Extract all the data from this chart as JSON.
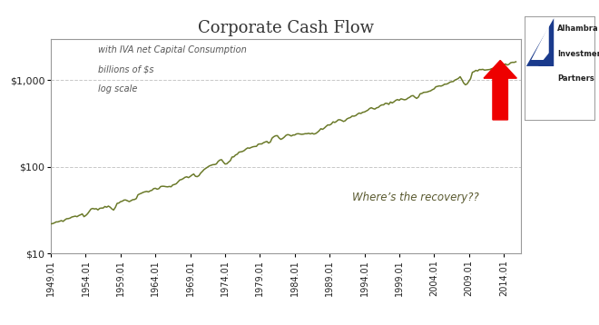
{
  "title": "Corporate Cash Flow",
  "subtitle_line1": "with IVA net Capital Consumption",
  "subtitle_line2": "billions of $s",
  "subtitle_line3": "log scale",
  "annotation": "Where’s the recovery??",
  "line_color": "#6b7a2a",
  "background_color": "#ffffff",
  "plot_bg_color": "#ffffff",
  "grid_color": "#c8c8c8",
  "title_color": "#333333",
  "yticks": [
    10,
    100,
    1000
  ],
  "ytick_labels": [
    "$10",
    "$100",
    "$1,000"
  ],
  "xtick_labels": [
    "1949.01",
    "1954.01",
    "1959.01",
    "1964.01",
    "1969.01",
    "1974.01",
    "1979.01",
    "1984.01",
    "1989.01",
    "1994.01",
    "1999.01",
    "2004.01",
    "2009.01",
    "2014.01"
  ],
  "xtick_years": [
    1949,
    1954,
    1959,
    1964,
    1969,
    1974,
    1979,
    1984,
    1989,
    1994,
    1999,
    2004,
    2009,
    2014
  ],
  "ymin": 10,
  "ymax": 3000,
  "xmin": 1949,
  "xmax": 2016.5,
  "arrow_color": "#ee0000",
  "logo_text1": "Alhambra",
  "logo_text2": "Investment",
  "logo_text3": "Partners",
  "logo_blue": "#1a3a8c",
  "logo_white": "#ffffff"
}
